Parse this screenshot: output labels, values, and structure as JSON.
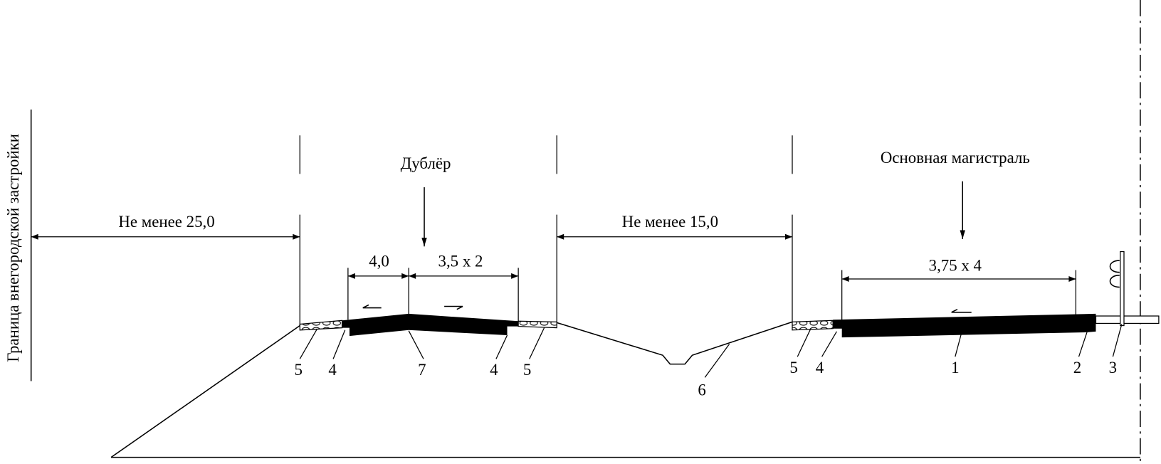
{
  "boundary_label": "Граница внегородской застройки",
  "roads": [
    {
      "label": "Дублёр"
    },
    {
      "label": "Основная магистраль"
    }
  ],
  "dimensions": [
    {
      "label": "Не менее 25,0"
    },
    {
      "label": "Не менее 15,0"
    },
    {
      "label": "4,0"
    },
    {
      "label": "3,5 x 2"
    },
    {
      "label": "3,75 x 4"
    }
  ],
  "callouts": [
    "5",
    "4",
    "7",
    "4",
    "5",
    "6",
    "5",
    "4",
    "1",
    "2",
    "3"
  ]
}
